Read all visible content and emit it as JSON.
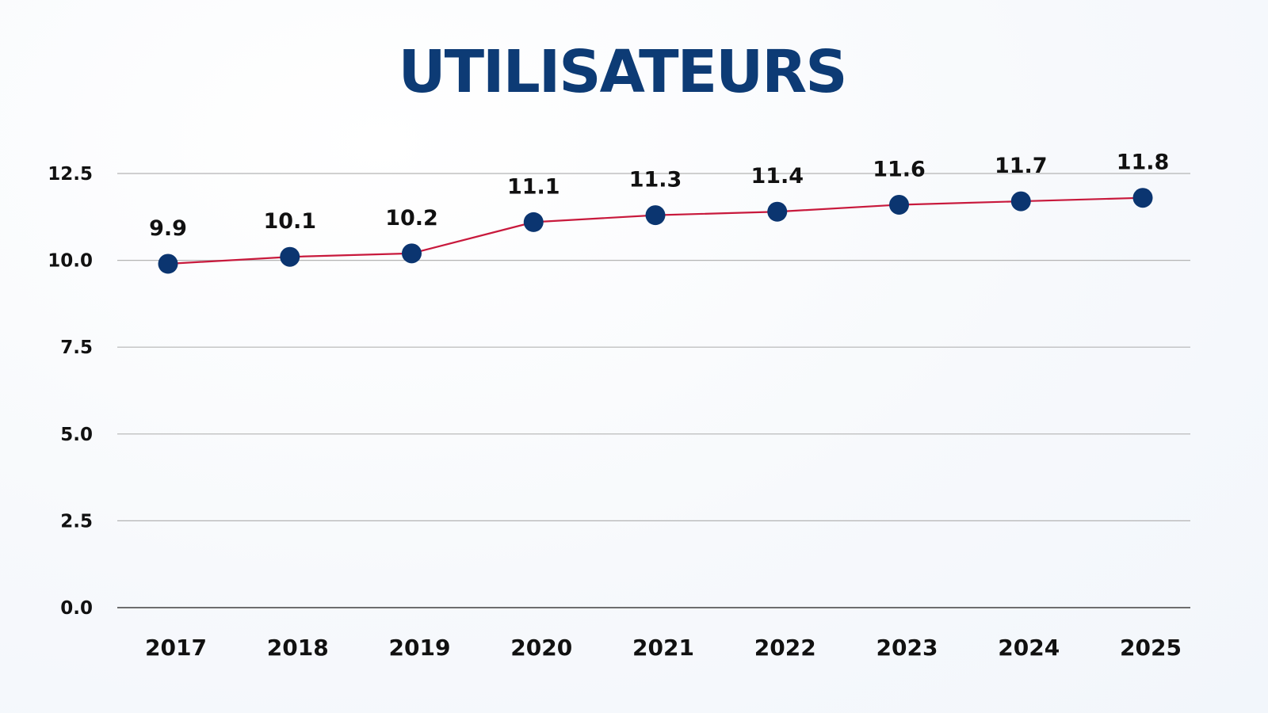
{
  "chart_data": {
    "type": "line",
    "title": "UTILISATEURS",
    "xlabel": "",
    "ylabel": "",
    "categories": [
      "2017",
      "2018",
      "2019",
      "2020",
      "2021",
      "2022",
      "2023",
      "2024",
      "2025"
    ],
    "series": [
      {
        "values": [
          9.9,
          10.1,
          10.2,
          11.1,
          11.3,
          11.4,
          11.6,
          11.7,
          11.8
        ]
      }
    ],
    "data_labels": [
      "9.9",
      "10.1",
      "10.2",
      "11.1",
      "11.3",
      "11.4",
      "11.6",
      "11.7",
      "11.8"
    ],
    "y_ticks": [
      "0.0",
      "2.5",
      "5.0",
      "7.5",
      "10.0",
      "12.5"
    ],
    "ylim": [
      0,
      12.5
    ],
    "grid": "horizontal",
    "legend": "none",
    "colors": {
      "title": "#0d3b75",
      "line": "#c8193c",
      "marker": "#0b3570",
      "grid": "#b4b4b4",
      "baseline": "#6e6e6e",
      "text": "#111111"
    }
  }
}
